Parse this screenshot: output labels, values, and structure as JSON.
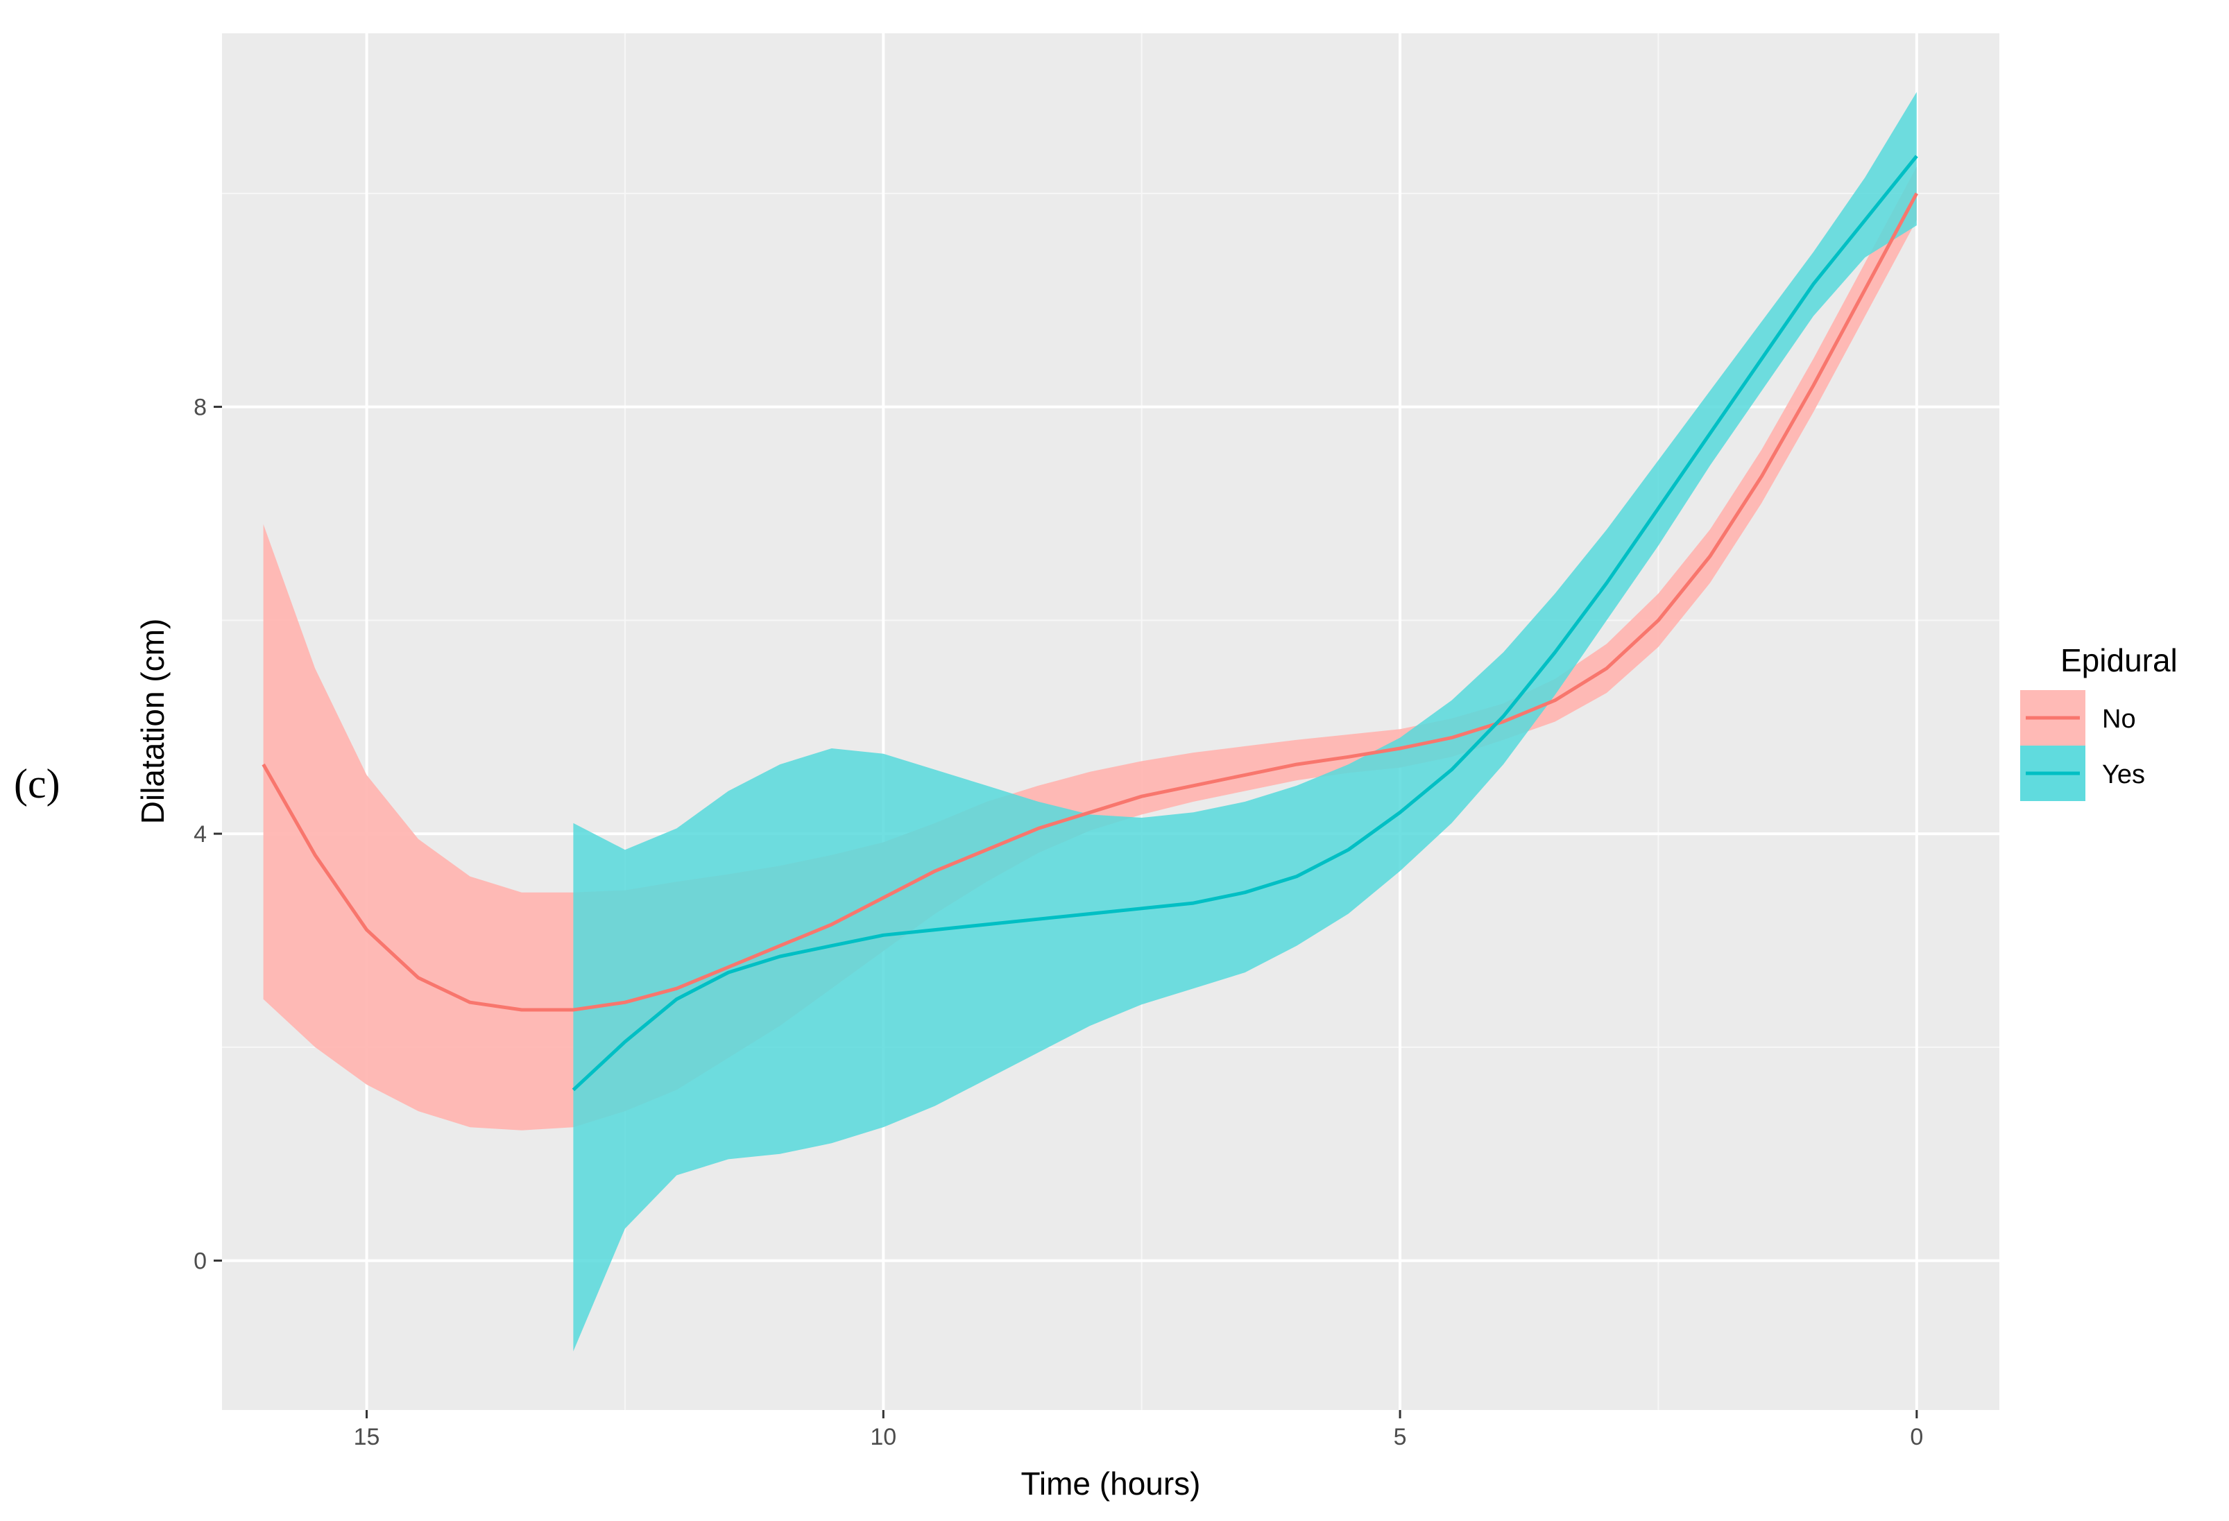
{
  "panel_label": "(c)",
  "chart_data": {
    "type": "line",
    "title": "",
    "xlabel": "Time (hours)",
    "ylabel": "Dilatation (cm)",
    "x_reversed": true,
    "xlim": [
      16.4,
      -0.8
    ],
    "ylim": [
      -1.4,
      11.5
    ],
    "x_ticks": [
      15,
      10,
      5,
      0
    ],
    "x_tick_labels": [
      "15",
      "10",
      "5",
      "0"
    ],
    "y_ticks": [
      0,
      4,
      8
    ],
    "y_tick_labels": [
      "0",
      "4",
      "8"
    ],
    "grid": true,
    "legend": {
      "title": "Epidural",
      "position": "right"
    },
    "series": [
      {
        "name": "No",
        "color": "#F8766D",
        "band_color": "#FFB6B2",
        "x": [
          16,
          15.5,
          15,
          14.5,
          14,
          13.5,
          13,
          12.5,
          12,
          11.5,
          11,
          10.5,
          10,
          9.5,
          9,
          8.5,
          8,
          7.5,
          7,
          6.5,
          6,
          5.5,
          5,
          4.5,
          4,
          3.5,
          3,
          2.5,
          2,
          1.5,
          1,
          0.5,
          0
        ],
        "y": [
          4.65,
          3.8,
          3.1,
          2.65,
          2.42,
          2.35,
          2.35,
          2.42,
          2.55,
          2.75,
          2.95,
          3.15,
          3.4,
          3.65,
          3.85,
          4.05,
          4.2,
          4.35,
          4.45,
          4.55,
          4.65,
          4.72,
          4.8,
          4.9,
          5.05,
          5.25,
          5.55,
          6.0,
          6.6,
          7.35,
          8.2,
          9.1,
          10.0
        ],
        "lower": [
          2.45,
          2.0,
          1.65,
          1.4,
          1.25,
          1.22,
          1.25,
          1.4,
          1.6,
          1.9,
          2.2,
          2.55,
          2.9,
          3.25,
          3.55,
          3.82,
          4.03,
          4.18,
          4.3,
          4.4,
          4.5,
          4.57,
          4.62,
          4.72,
          4.88,
          5.05,
          5.32,
          5.75,
          6.35,
          7.1,
          7.95,
          8.85,
          9.75
        ],
        "upper": [
          6.9,
          5.55,
          4.55,
          3.95,
          3.6,
          3.45,
          3.45,
          3.47,
          3.55,
          3.62,
          3.7,
          3.8,
          3.92,
          4.1,
          4.3,
          4.45,
          4.58,
          4.68,
          4.76,
          4.82,
          4.88,
          4.93,
          4.98,
          5.08,
          5.22,
          5.45,
          5.78,
          6.25,
          6.85,
          7.6,
          8.45,
          9.35,
          10.25
        ]
      },
      {
        "name": "Yes",
        "color": "#00BFC4",
        "band_color": "#57D9DC",
        "x": [
          13,
          12.5,
          12,
          11.5,
          11,
          10.5,
          10,
          9.5,
          9,
          8.5,
          8,
          7.5,
          7,
          6.5,
          6,
          5.5,
          5,
          4.5,
          4,
          3.5,
          3,
          2.5,
          2,
          1.5,
          1,
          0.5,
          0
        ],
        "y": [
          1.6,
          2.05,
          2.45,
          2.7,
          2.85,
          2.95,
          3.05,
          3.1,
          3.15,
          3.2,
          3.25,
          3.3,
          3.35,
          3.45,
          3.6,
          3.85,
          4.2,
          4.6,
          5.1,
          5.7,
          6.35,
          7.05,
          7.75,
          8.45,
          9.15,
          9.75,
          10.35
        ],
        "lower": [
          -0.85,
          0.3,
          0.8,
          0.95,
          1.0,
          1.1,
          1.25,
          1.45,
          1.7,
          1.95,
          2.2,
          2.4,
          2.55,
          2.7,
          2.95,
          3.25,
          3.65,
          4.1,
          4.65,
          5.3,
          6.0,
          6.7,
          7.45,
          8.15,
          8.85,
          9.4,
          9.7
        ],
        "upper": [
          4.1,
          3.85,
          4.05,
          4.4,
          4.65,
          4.8,
          4.75,
          4.6,
          4.45,
          4.3,
          4.18,
          4.15,
          4.2,
          4.3,
          4.45,
          4.65,
          4.9,
          5.25,
          5.7,
          6.25,
          6.85,
          7.5,
          8.15,
          8.8,
          9.45,
          10.15,
          10.95
        ]
      }
    ]
  }
}
